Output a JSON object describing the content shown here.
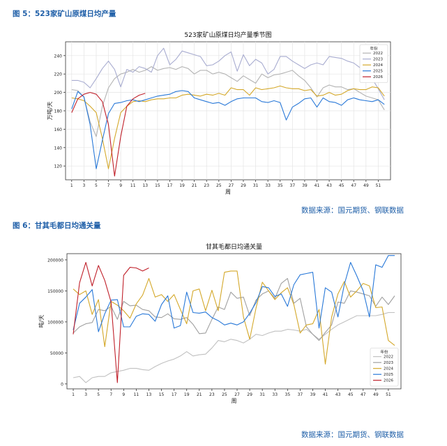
{
  "figures": [
    {
      "caption": "图 5：523家矿山原煤日均产量",
      "source": "数据来源：国元期货、钢联数据"
    },
    {
      "caption": "图 6：甘其毛都日均通关量",
      "source": "数据来源：国元期货、钢联数据"
    }
  ],
  "chart_data": [
    {
      "type": "line",
      "title": "523家矿山原煤日均产量季节图",
      "xlabel": "周",
      "ylabel": "万吨/天",
      "xlim": [
        0,
        53
      ],
      "ylim": [
        105,
        255
      ],
      "yticks": [
        120,
        140,
        160,
        180,
        200,
        220,
        240
      ],
      "xticks": [
        1,
        3,
        5,
        7,
        9,
        11,
        13,
        15,
        17,
        19,
        21,
        23,
        25,
        27,
        29,
        31,
        33,
        35,
        37,
        39,
        41,
        43,
        45,
        47,
        49,
        51
      ],
      "grid": true,
      "legend": {
        "title": "年份",
        "position": "top-right"
      },
      "series": [
        {
          "name": "2022",
          "color": "#b3b3b3",
          "values": [
            203,
            202,
            195,
            168,
            152,
            185,
            205,
            215,
            220,
            222,
            225,
            222,
            224,
            228,
            224,
            226,
            227,
            225,
            228,
            226,
            220,
            224,
            224,
            220,
            222,
            220,
            216,
            212,
            218,
            214,
            210,
            220,
            216,
            219,
            220,
            222,
            224,
            218,
            213,
            205,
            195,
            205,
            208,
            206,
            206,
            203,
            204,
            200,
            196,
            194,
            192,
            181
          ]
        },
        {
          "name": "2023",
          "color": "#a8acd0",
          "values": [
            213,
            213,
            211,
            205,
            215,
            226,
            234,
            225,
            206,
            225,
            222,
            228,
            226,
            222,
            240,
            248,
            230,
            236,
            245,
            243,
            241,
            239,
            229,
            230,
            234,
            240,
            244,
            223,
            241,
            229,
            236,
            232,
            220,
            225,
            239,
            239,
            234,
            230,
            226,
            230,
            232,
            230,
            239,
            238,
            237,
            234,
            232,
            227,
            222,
            215,
            204,
            192
          ]
        },
        {
          "name": "2024",
          "color": "#d4a82a",
          "values": [
            194,
            193,
            191,
            185,
            178,
            150,
            117,
            150,
            178,
            185,
            190,
            191,
            190,
            192,
            193,
            193,
            194,
            194,
            197,
            198,
            197,
            196,
            198,
            197,
            199,
            197,
            205,
            203,
            203,
            197,
            205,
            203,
            204,
            205,
            207,
            205,
            204,
            204,
            202,
            203,
            196,
            197,
            200,
            197,
            198,
            202,
            204,
            203,
            203,
            206,
            205,
            196
          ]
        },
        {
          "name": "2025",
          "color": "#2878d8",
          "values": [
            182,
            201,
            195,
            165,
            117,
            148,
            177,
            188,
            189,
            191,
            192,
            190,
            192,
            194,
            196,
            197,
            198,
            201,
            202,
            201,
            194,
            192,
            190,
            188,
            189,
            186,
            190,
            193,
            194,
            194,
            194,
            190,
            189,
            191,
            189,
            170,
            184,
            188,
            193,
            194,
            184,
            194,
            190,
            189,
            186,
            192,
            194,
            192,
            191,
            190,
            192,
            187
          ]
        },
        {
          "name": "2026",
          "color": "#c0202a",
          "values": [
            178,
            193,
            198,
            200,
            198,
            190,
            165,
            109,
            152,
            185,
            193,
            197,
            199
          ]
        }
      ]
    },
    {
      "type": "line",
      "title": "甘其毛都日均通关量",
      "xlabel": "周",
      "ylabel": "吨/天",
      "xlim": [
        0,
        53
      ],
      "ylim": [
        -8000,
        210000
      ],
      "yticks": [
        0,
        50000,
        100000,
        150000,
        200000
      ],
      "xticks": [
        1,
        3,
        5,
        7,
        9,
        11,
        13,
        15,
        17,
        19,
        21,
        23,
        25,
        27,
        29,
        31,
        33,
        35,
        37,
        39,
        41,
        43,
        45,
        47,
        49,
        51
      ],
      "grid": false,
      "legend": {
        "title": "年份",
        "position": "bottom-right"
      },
      "series": [
        {
          "name": "2022",
          "color": "#c0c0c0",
          "values": [
            10000,
            12000,
            2000,
            10000,
            12000,
            12000,
            18000,
            20000,
            22000,
            25000,
            25000,
            23000,
            22000,
            28000,
            33000,
            37000,
            40000,
            45000,
            52000,
            45000,
            47000,
            48000,
            58000,
            70000,
            68000,
            72000,
            70000,
            66000,
            72000,
            80000,
            78000,
            82000,
            85000,
            85000,
            88000,
            87000,
            85000,
            88000,
            80000,
            72000,
            80000,
            88000,
            95000,
            100000,
            105000,
            110000,
            110000,
            110000,
            110000,
            112000,
            115000,
            115000
          ]
        },
        {
          "name": "2023",
          "color": "#a0a0a0",
          "values": [
            82000,
            92000,
            97000,
            99000,
            120000,
            118000,
            125000,
            104000,
            133000,
            126000,
            127000,
            120000,
            118000,
            108000,
            107000,
            113000,
            105000,
            104000,
            107000,
            96000,
            81000,
            82000,
            104000,
            124000,
            120000,
            148000,
            138000,
            140000,
            110000,
            135000,
            145000,
            150000,
            138000,
            162000,
            170000,
            130000,
            138000,
            92000,
            80000,
            70000,
            83000,
            95000,
            132000,
            130000,
            150000,
            148000,
            145000,
            142000,
            125000,
            140000,
            128000,
            142000
          ]
        },
        {
          "name": "2024",
          "color": "#d4a82a",
          "values": [
            153000,
            144000,
            150000,
            112000,
            136000,
            60000,
            133000,
            127000,
            118000,
            106000,
            129000,
            143000,
            170000,
            140000,
            144000,
            133000,
            144000,
            120000,
            97000,
            150000,
            153000,
            118000,
            151000,
            118000,
            180000,
            182000,
            182000,
            108000,
            72000,
            122000,
            164000,
            150000,
            136000,
            147000,
            155000,
            128000,
            82000,
            95000,
            97000,
            120000,
            32000,
            108000,
            145000,
            165000,
            140000,
            150000,
            162000,
            158000,
            123000,
            124000,
            70000,
            62000
          ]
        },
        {
          "name": "2025",
          "color": "#2878d8",
          "values": [
            87000,
            130000,
            140000,
            152000,
            84000,
            113000,
            135000,
            136000,
            92000,
            92000,
            109000,
            113000,
            112000,
            101000,
            128000,
            142000,
            90000,
            94000,
            148000,
            115000,
            114000,
            116000,
            107000,
            102000,
            95000,
            98000,
            95000,
            100000,
            114000,
            131000,
            157000,
            155000,
            141000,
            145000,
            125000,
            160000,
            176000,
            178000,
            180000,
            90000,
            155000,
            148000,
            108000,
            160000,
            196000,
            174000,
            150000,
            108000,
            192000,
            188000,
            207000,
            207000
          ]
        },
        {
          "name": "2026",
          "color": "#c0202a",
          "values": [
            80000,
            163000,
            196000,
            158000,
            191000,
            167000,
            132000,
            2000,
            175000,
            188000,
            187000,
            182000,
            187000
          ]
        }
      ]
    }
  ]
}
